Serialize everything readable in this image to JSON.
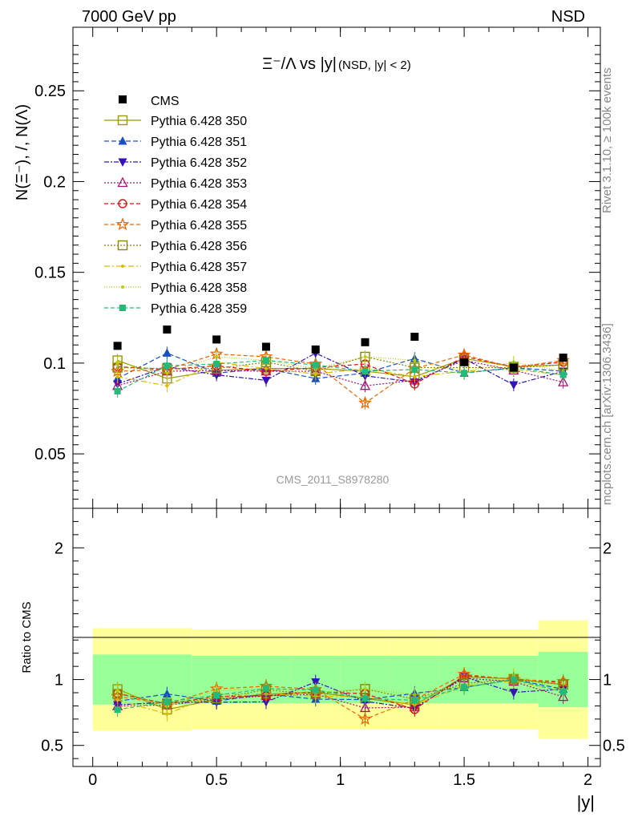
{
  "header": {
    "left": "7000 GeV pp",
    "right": "NSD"
  },
  "side_labels": {
    "rivet": "Rivet 3.1.10, ≥ 100k events",
    "mcplots": "mcplots.cern.ch [arXiv:1306.3436]"
  },
  "watermark": "CMS_2011_S8978280",
  "chart_data": {
    "type": "scatter",
    "title": "Ξ⁻/Λ vs |y|",
    "title_suffix": "(NSD, |y| < 2)",
    "xlabel": "|y|",
    "ylabel": "N(Ξ⁻), /, N(Λ)",
    "ratio_ylabel": "Ratio to CMS",
    "xlim": [
      -0.08,
      2.05
    ],
    "ylim": [
      0.02,
      0.285
    ],
    "ratio_ylim": [
      0.34,
      2.3
    ],
    "x_ticks": [
      0,
      0.5,
      1,
      1.5,
      2
    ],
    "x_tick_labels": [
      "0",
      "0.5",
      "1",
      "1.5",
      "2"
    ],
    "y_ticks": [
      0.05,
      0.1,
      0.15,
      0.2,
      0.25
    ],
    "y_tick_labels": [
      "0.05",
      "0.1",
      "0.15",
      "0.2",
      "0.25"
    ],
    "ratio_ticks": [
      0.5,
      1,
      2
    ],
    "ratio_tick_labels": [
      "0.5",
      "1",
      "2"
    ],
    "x": [
      0.1,
      0.3,
      0.5,
      0.7,
      0.9,
      1.1,
      1.3,
      1.5,
      1.7,
      1.9
    ],
    "bin_edges": [
      0,
      0.2,
      0.4,
      0.6,
      0.8,
      1.0,
      1.2,
      1.4,
      1.6,
      1.8,
      2.0
    ],
    "cms": {
      "name": "CMS",
      "values": [
        0.1095,
        0.1185,
        0.113,
        0.109,
        0.1075,
        0.1115,
        0.1145,
        0.1005,
        0.0975,
        0.103
      ]
    },
    "band_inner": [
      0.19,
      0.19,
      0.18,
      0.18,
      0.18,
      0.18,
      0.18,
      0.18,
      0.18,
      0.21
    ],
    "band_outer": [
      0.39,
      0.39,
      0.38,
      0.38,
      0.38,
      0.38,
      0.38,
      0.38,
      0.38,
      0.45
    ],
    "series": [
      {
        "name": "Pythia 6.428 350",
        "color": "#999900",
        "marker": "square-open",
        "dash": "",
        "values": [
          0.1015,
          0.0915,
          0.096,
          0.097,
          0.097,
          0.0955,
          0.0925,
          0.1025,
          0.098,
          0.099
        ]
      },
      {
        "name": "Pythia 6.428 351",
        "color": "#1a4fc4",
        "marker": "triangle-up",
        "dash": "6,3",
        "values": [
          0.0915,
          0.1055,
          0.0945,
          0.097,
          0.0915,
          0.0945,
          0.1025,
          0.0945,
          0.0975,
          0.0955
        ]
      },
      {
        "name": "Pythia 6.428 352",
        "color": "#3311bb",
        "marker": "triangle-down",
        "dash": "6,2,2,2",
        "values": [
          0.0885,
          0.098,
          0.0935,
          0.0905,
          0.1055,
          0.093,
          0.0895,
          0.1025,
          0.088,
          0.0955
        ]
      },
      {
        "name": "Pythia 6.428 353",
        "color": "#aa1177",
        "marker": "triangle-open",
        "dash": "2,2",
        "values": [
          0.0875,
          0.0955,
          0.096,
          0.0955,
          0.0955,
          0.0875,
          0.0905,
          0.1015,
          0.096,
          0.0895
        ]
      },
      {
        "name": "Pythia 6.428 354",
        "color": "#dd1111",
        "marker": "circle-open",
        "dash": "5,3",
        "values": [
          0.098,
          0.0965,
          0.0985,
          0.0955,
          0.0975,
          0.0995,
          0.0885,
          0.1035,
          0.098,
          0.1005
        ]
      },
      {
        "name": "Pythia 6.428 355",
        "color": "#ee6600",
        "marker": "star-open",
        "dash": "5,3",
        "values": [
          0.0955,
          0.0965,
          0.105,
          0.1035,
          0.0995,
          0.078,
          0.097,
          0.1045,
          0.0975,
          0.1015
        ]
      },
      {
        "name": "Pythia 6.428 356",
        "color": "#888800",
        "marker": "square-open",
        "dash": "2,2",
        "values": [
          0.0975,
          0.097,
          0.097,
          0.1005,
          0.0955,
          0.1035,
          0.0975,
          0.0975,
          0.0975,
          0.099
        ]
      },
      {
        "name": "Pythia 6.428 357",
        "color": "#ddbb00",
        "marker": "dot",
        "dash": "7,3,2,3",
        "values": [
          0.0925,
          0.0875,
          0.1005,
          0.097,
          0.094,
          0.097,
          0.0925,
          0.0955,
          0.0965,
          0.0935
        ]
      },
      {
        "name": "Pythia 6.428 358",
        "color": "#bbcc00",
        "marker": "dot",
        "dash": "1,2",
        "values": [
          0.1005,
          0.0945,
          0.1035,
          0.1015,
          0.097,
          0.1035,
          0.1015,
          0.0955,
          0.1005,
          0.0955
        ]
      },
      {
        "name": "Pythia 6.428 359",
        "color": "#22bb77",
        "marker": "square",
        "dash": "5,3",
        "values": [
          0.0845,
          0.0985,
          0.0995,
          0.1015,
          0.099,
          0.0955,
          0.0965,
          0.0945,
          0.0975,
          0.0935
        ]
      }
    ]
  }
}
